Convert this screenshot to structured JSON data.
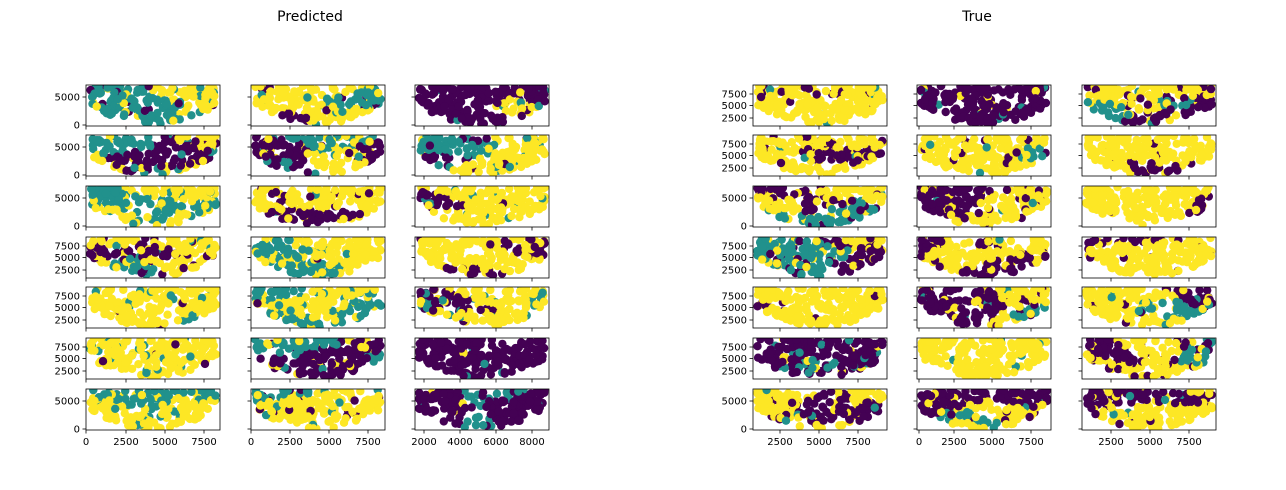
{
  "colors": {
    "dark": "#440154",
    "mid": "#21918c",
    "light": "#fde725",
    "frame": "#000000"
  },
  "chart_data": [
    {
      "type": "scatter",
      "title": "Predicted",
      "grid": false,
      "rows": 7,
      "cols": 3,
      "row_y_ticks": [
        [
          "0",
          "5000"
        ],
        [
          "0",
          "5000"
        ],
        [
          "0",
          "5000"
        ],
        [
          "2500",
          "5000",
          "7500"
        ],
        [
          "2500",
          "5000",
          "7500"
        ],
        [
          "2500",
          "5000",
          "7500"
        ],
        [
          "0",
          "5000"
        ]
      ],
      "col_x_ticks": [
        [
          "0",
          "2500",
          "5000",
          "7500"
        ],
        [
          "0",
          "2500",
          "5000",
          "7500"
        ],
        [
          "2000",
          "4000",
          "6000",
          "8000"
        ]
      ],
      "panels": [
        {
          "row": 0,
          "col": 0,
          "fraction": {
            "dark": 0.2,
            "mid": 0.4,
            "light": 0.4
          }
        },
        {
          "row": 0,
          "col": 1,
          "fraction": {
            "dark": 0.25,
            "mid": 0.35,
            "light": 0.4
          }
        },
        {
          "row": 0,
          "col": 2,
          "fraction": {
            "dark": 0.85,
            "mid": 0.1,
            "light": 0.05
          }
        },
        {
          "row": 1,
          "col": 0,
          "fraction": {
            "dark": 0.3,
            "mid": 0.35,
            "light": 0.35
          }
        },
        {
          "row": 1,
          "col": 1,
          "fraction": {
            "dark": 0.4,
            "mid": 0.1,
            "light": 0.5
          }
        },
        {
          "row": 1,
          "col": 2,
          "fraction": {
            "dark": 0.2,
            "mid": 0.45,
            "light": 0.35
          }
        },
        {
          "row": 2,
          "col": 0,
          "fraction": {
            "dark": 0.05,
            "mid": 0.4,
            "light": 0.55
          }
        },
        {
          "row": 2,
          "col": 1,
          "fraction": {
            "dark": 0.45,
            "mid": 0.05,
            "light": 0.5
          }
        },
        {
          "row": 2,
          "col": 2,
          "fraction": {
            "dark": 0.02,
            "mid": 0.2,
            "light": 0.78
          }
        },
        {
          "row": 3,
          "col": 0,
          "fraction": {
            "dark": 0.4,
            "mid": 0.15,
            "light": 0.45
          }
        },
        {
          "row": 3,
          "col": 1,
          "fraction": {
            "dark": 0.05,
            "mid": 0.3,
            "light": 0.65
          }
        },
        {
          "row": 3,
          "col": 2,
          "fraction": {
            "dark": 0.15,
            "mid": 0.0,
            "light": 0.85
          }
        },
        {
          "row": 4,
          "col": 0,
          "fraction": {
            "dark": 0.02,
            "mid": 0.25,
            "light": 0.73
          }
        },
        {
          "row": 4,
          "col": 1,
          "fraction": {
            "dark": 0.05,
            "mid": 0.45,
            "light": 0.5
          }
        },
        {
          "row": 4,
          "col": 2,
          "fraction": {
            "dark": 0.02,
            "mid": 0.35,
            "light": 0.63
          }
        },
        {
          "row": 5,
          "col": 0,
          "fraction": {
            "dark": 0.05,
            "mid": 0.4,
            "light": 0.55
          }
        },
        {
          "row": 5,
          "col": 1,
          "fraction": {
            "dark": 0.35,
            "mid": 0.3,
            "light": 0.35
          }
        },
        {
          "row": 5,
          "col": 2,
          "fraction": {
            "dark": 0.85,
            "mid": 0.1,
            "light": 0.05
          }
        },
        {
          "row": 6,
          "col": 0,
          "fraction": {
            "dark": 0.05,
            "mid": 0.45,
            "light": 0.5
          }
        },
        {
          "row": 6,
          "col": 1,
          "fraction": {
            "dark": 0.4,
            "mid": 0.2,
            "light": 0.4
          }
        },
        {
          "row": 6,
          "col": 2,
          "fraction": {
            "dark": 0.9,
            "mid": 0.08,
            "light": 0.02
          }
        }
      ]
    },
    {
      "type": "scatter",
      "title": "True",
      "grid": false,
      "rows": 7,
      "cols": 3,
      "row_y_ticks": [
        [
          "2500",
          "5000",
          "7500"
        ],
        [
          "2500",
          "5000",
          "7500"
        ],
        [
          "0",
          "5000"
        ],
        [
          "2500",
          "5000",
          "7500"
        ],
        [
          "2500",
          "5000",
          "7500"
        ],
        [
          "2500",
          "5000",
          "7500"
        ],
        [
          "0",
          "5000"
        ]
      ],
      "col_x_ticks": [
        [
          "2500",
          "5000",
          "7500"
        ],
        [
          "0",
          "2500",
          "5000",
          "7500"
        ],
        [
          "2500",
          "5000",
          "7500"
        ]
      ],
      "panels": [
        {
          "row": 0,
          "col": 0,
          "fraction": {
            "dark": 0.35,
            "mid": 0.1,
            "light": 0.55
          }
        },
        {
          "row": 0,
          "col": 1,
          "fraction": {
            "dark": 0.7,
            "mid": 0.15,
            "light": 0.15
          }
        },
        {
          "row": 0,
          "col": 2,
          "fraction": {
            "dark": 0.35,
            "mid": 0.1,
            "light": 0.55
          }
        },
        {
          "row": 1,
          "col": 0,
          "fraction": {
            "dark": 0.45,
            "mid": 0.05,
            "light": 0.5
          }
        },
        {
          "row": 1,
          "col": 1,
          "fraction": {
            "dark": 0.3,
            "mid": 0.1,
            "light": 0.6
          }
        },
        {
          "row": 1,
          "col": 2,
          "fraction": {
            "dark": 0.15,
            "mid": 0.0,
            "light": 0.85
          }
        },
        {
          "row": 2,
          "col": 0,
          "fraction": {
            "dark": 0.3,
            "mid": 0.15,
            "light": 0.55
          }
        },
        {
          "row": 2,
          "col": 1,
          "fraction": {
            "dark": 0.3,
            "mid": 0.15,
            "light": 0.55
          }
        },
        {
          "row": 2,
          "col": 2,
          "fraction": {
            "dark": 0.05,
            "mid": 0.0,
            "light": 0.95
          }
        },
        {
          "row": 3,
          "col": 0,
          "fraction": {
            "dark": 0.4,
            "mid": 0.1,
            "light": 0.5
          }
        },
        {
          "row": 3,
          "col": 1,
          "fraction": {
            "dark": 0.35,
            "mid": 0.15,
            "light": 0.5
          }
        },
        {
          "row": 3,
          "col": 2,
          "fraction": {
            "dark": 0.15,
            "mid": 0.0,
            "light": 0.85
          }
        },
        {
          "row": 4,
          "col": 0,
          "fraction": {
            "dark": 0.05,
            "mid": 0.02,
            "light": 0.93
          }
        },
        {
          "row": 4,
          "col": 1,
          "fraction": {
            "dark": 0.4,
            "mid": 0.1,
            "light": 0.5
          }
        },
        {
          "row": 4,
          "col": 2,
          "fraction": {
            "dark": 0.15,
            "mid": 0.1,
            "light": 0.75
          }
        },
        {
          "row": 5,
          "col": 0,
          "fraction": {
            "dark": 0.55,
            "mid": 0.2,
            "light": 0.25
          }
        },
        {
          "row": 5,
          "col": 1,
          "fraction": {
            "dark": 0.05,
            "mid": 0.05,
            "light": 0.9
          }
        },
        {
          "row": 5,
          "col": 2,
          "fraction": {
            "dark": 0.75,
            "mid": 0.05,
            "light": 0.2
          }
        },
        {
          "row": 6,
          "col": 0,
          "fraction": {
            "dark": 0.3,
            "mid": 0.1,
            "light": 0.6
          }
        },
        {
          "row": 6,
          "col": 1,
          "fraction": {
            "dark": 0.3,
            "mid": 0.1,
            "light": 0.6
          }
        },
        {
          "row": 6,
          "col": 2,
          "fraction": {
            "dark": 0.25,
            "mid": 0.05,
            "light": 0.7
          }
        }
      ]
    }
  ]
}
